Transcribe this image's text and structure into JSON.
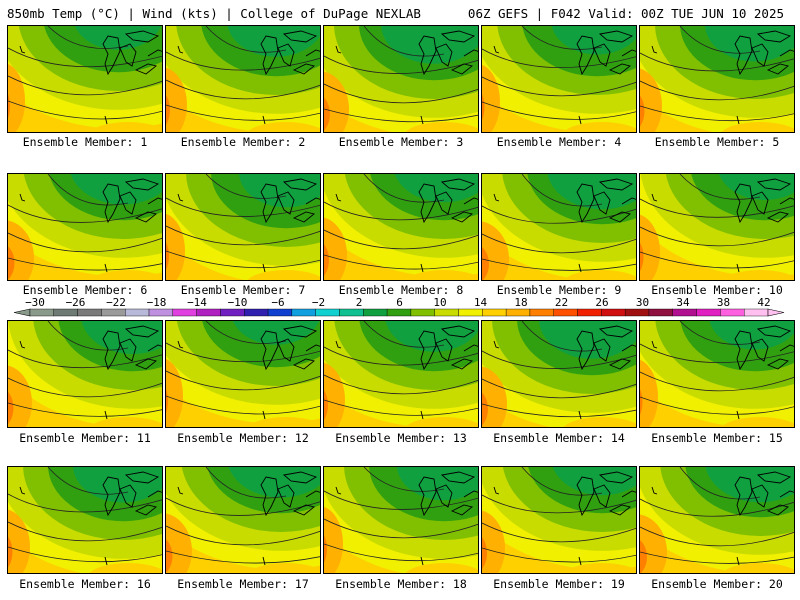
{
  "header": {
    "left_title": "850mb Temp (°C) | Wind (kts) | College of DuPage NEXLAB",
    "right_title": "06Z GEFS | F042 Valid: 00Z TUE JUN 10 2025"
  },
  "colorbar": {
    "tick_labels": [
      "−30",
      "−26",
      "−22",
      "−18",
      "−14",
      "−10",
      "−6",
      "−2",
      "2",
      "6",
      "10",
      "14",
      "18",
      "22",
      "26",
      "30",
      "34",
      "38",
      "42"
    ],
    "colors": [
      "#8a9a8a",
      "#6e7a74",
      "#7a7a7a",
      "#9a9a9a",
      "#b8b8d8",
      "#c090e0",
      "#e040e0",
      "#b020c0",
      "#7020c0",
      "#3020b0",
      "#1040d0",
      "#10a0e0",
      "#10d0d0",
      "#10c090",
      "#10a040",
      "#30a010",
      "#80c000",
      "#c8dc00",
      "#f0f000",
      "#ffd000",
      "#ffb000",
      "#ff8000",
      "#ff5000",
      "#f02000",
      "#d01010",
      "#a01010",
      "#901040",
      "#b01090",
      "#e020c0",
      "#ff60e0",
      "#ffc0f0"
    ]
  },
  "members": [
    {
      "label": "Ensemble Member: 1"
    },
    {
      "label": "Ensemble Member: 2"
    },
    {
      "label": "Ensemble Member: 3"
    },
    {
      "label": "Ensemble Member: 4"
    },
    {
      "label": "Ensemble Member: 5"
    },
    {
      "label": "Ensemble Member: 6"
    },
    {
      "label": "Ensemble Member: 7"
    },
    {
      "label": "Ensemble Member: 8"
    },
    {
      "label": "Ensemble Member: 9"
    },
    {
      "label": "Ensemble Member: 10"
    },
    {
      "label": "Ensemble Member: 11"
    },
    {
      "label": "Ensemble Member: 12"
    },
    {
      "label": "Ensemble Member: 13"
    },
    {
      "label": "Ensemble Member: 14"
    },
    {
      "label": "Ensemble Member: 15"
    },
    {
      "label": "Ensemble Member: 16"
    },
    {
      "label": "Ensemble Member: 17"
    },
    {
      "label": "Ensemble Member: 18"
    },
    {
      "label": "Ensemble Member: 19"
    },
    {
      "label": "Ensemble Member: 20"
    }
  ]
}
